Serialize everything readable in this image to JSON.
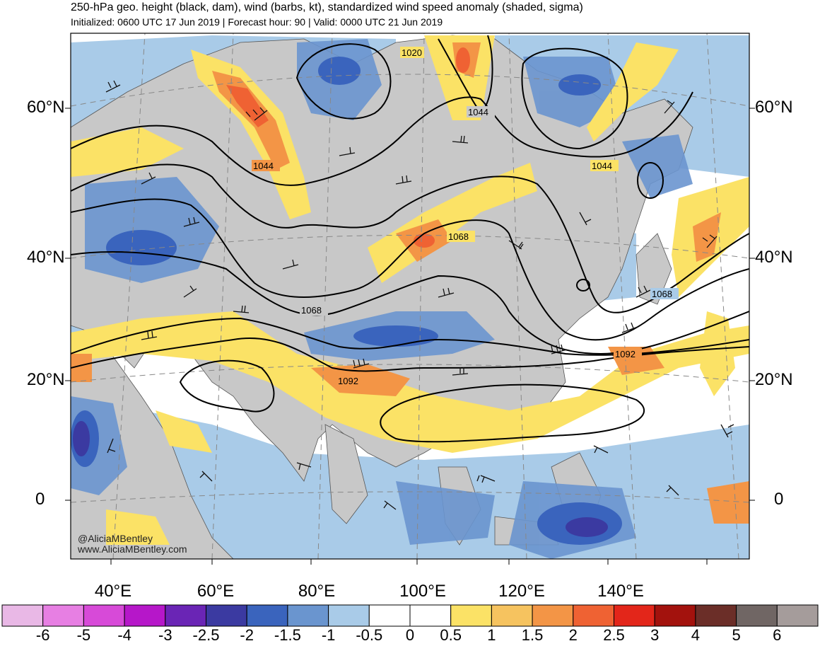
{
  "header": {
    "title": "250-hPa geo. height (black, dam), wind (barbs, kt), standardized wind speed anomaly (shaded, sigma)",
    "subtitle": "Initialized: 0600 UTC 17 Jun 2019 | Forecast hour: 90 | Valid: 0000 UTC 21 Jun 2019"
  },
  "map": {
    "lat_labels": [
      "60°N",
      "40°N",
      "20°N",
      "0"
    ],
    "lon_labels": [
      "40°E",
      "60°E",
      "80°E",
      "100°E",
      "120°E",
      "140°E"
    ],
    "contour_labels": [
      "1020",
      "1044",
      "1044",
      "1044",
      "1068",
      "1068",
      "1068",
      "1092",
      "1092"
    ],
    "credits": [
      "@AliciaMBentley",
      "www.AliciaMBentley.com"
    ],
    "colors": {
      "ocean": "#ffffff",
      "land": "#c8c8c8",
      "coast": "#555555",
      "contour": "#000000"
    }
  },
  "colorbar": {
    "labels": [
      "-6",
      "-5",
      "-4",
      "-3",
      "-2.5",
      "-2",
      "-1.5",
      "-1",
      "-0.5",
      "0",
      "0.5",
      "1",
      "1.5",
      "2",
      "2.5",
      "3",
      "4",
      "5",
      "6"
    ],
    "colors": [
      "#e9b8e6",
      "#e77fe3",
      "#d74ad8",
      "#b617c9",
      "#6a25b5",
      "#3b3aa1",
      "#3a64bd",
      "#6a95cf",
      "#a9cbe8",
      "#ffffff",
      "#ffffff",
      "#fbe266",
      "#f6c35f",
      "#f39546",
      "#ef6233",
      "#e3261a",
      "#a3120d",
      "#6b2e28",
      "#706664",
      "#a59c9b"
    ]
  }
}
